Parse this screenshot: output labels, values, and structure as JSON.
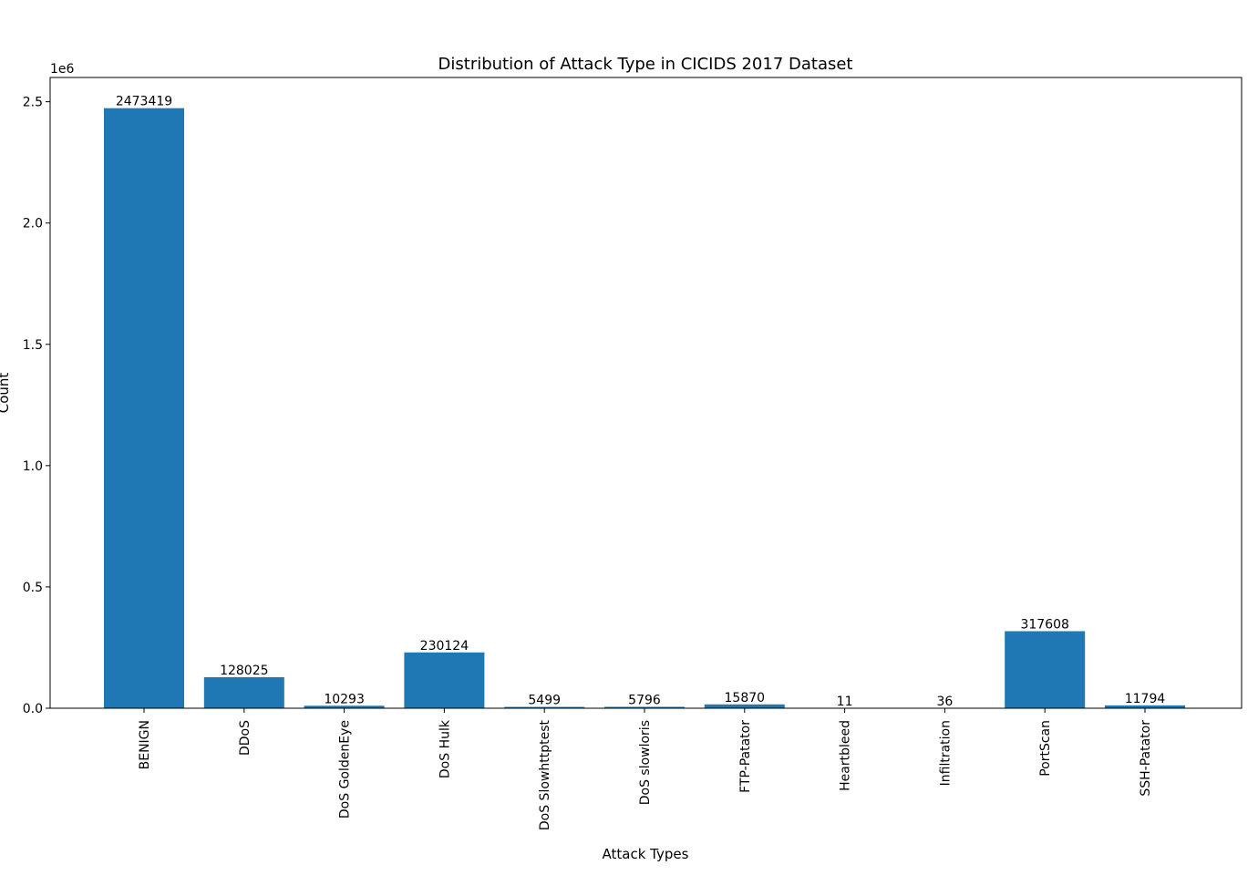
{
  "chart_data": {
    "type": "bar",
    "title": "Distribution of Attack Type in CICIDS 2017 Dataset",
    "xlabel": "Attack Types",
    "ylabel": "Count",
    "y_offset_label": "1e6",
    "categories": [
      "BENIGN",
      "DDoS",
      "DoS GoldenEye",
      "DoS Hulk",
      "DoS Slowhttptest",
      "DoS slowloris",
      "FTP-Patator",
      "Heartbleed",
      "Infiltration",
      "PortScan",
      "SSH-Patator"
    ],
    "values": [
      2473419,
      128025,
      10293,
      230124,
      5499,
      5796,
      15870,
      11,
      36,
      317608,
      11794
    ],
    "data_labels": [
      "2473419",
      "128025",
      "10293",
      "230124",
      "5499",
      "5796",
      "15870",
      "11",
      "36",
      "317608",
      "11794"
    ],
    "ylim": [
      0,
      2600000
    ],
    "y_ticks": [
      0,
      500000,
      1000000,
      1500000,
      2000000,
      2500000
    ],
    "y_tick_labels": [
      "0.0",
      "0.5",
      "1.0",
      "1.5",
      "2.0",
      "2.5"
    ],
    "bar_color": "#1f77b4",
    "grid": false,
    "legend": "none"
  }
}
